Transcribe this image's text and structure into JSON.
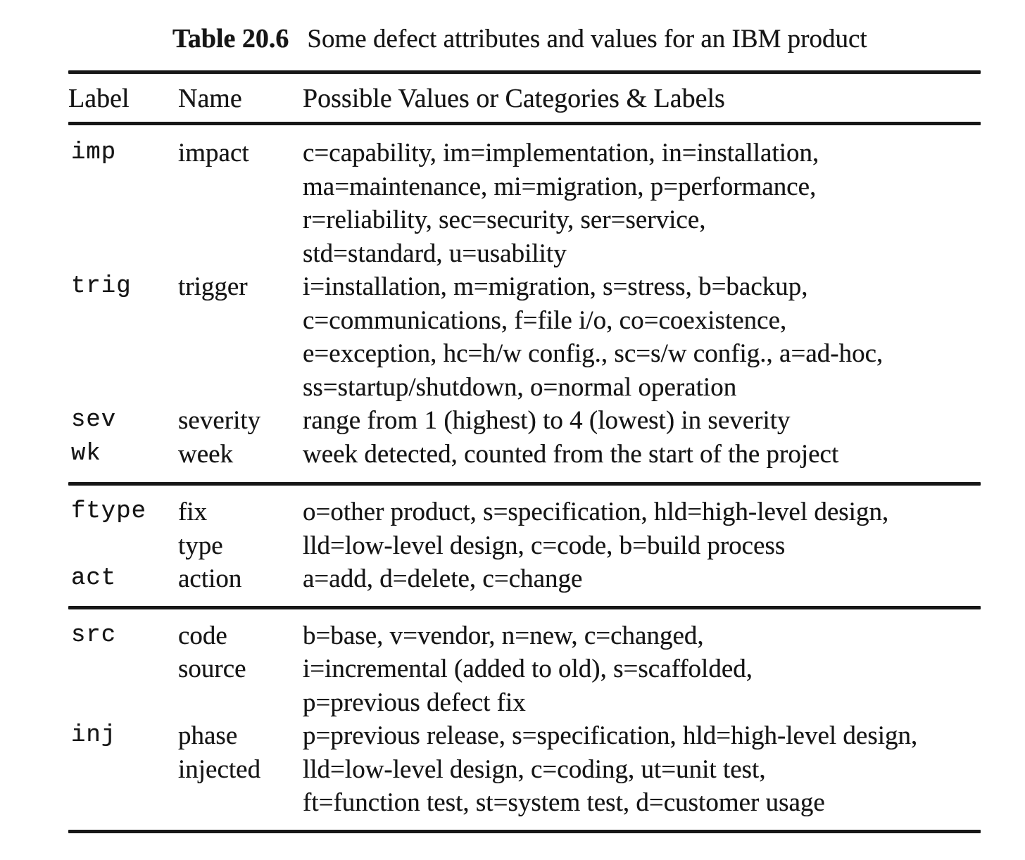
{
  "colors": {
    "ink": "#161616",
    "paper": "#ffffff"
  },
  "caption": {
    "label": "Table 20.6",
    "text": "Some defect attributes and values for an IBM product"
  },
  "table": {
    "columns": [
      "Label",
      "Name",
      "Possible Values or Categories & Labels"
    ],
    "groups": [
      {
        "rows": [
          {
            "label": "imp",
            "name": [
              "impact"
            ],
            "values": [
              "c=capability, im=implementation, in=installation,",
              "ma=maintenance, mi=migration, p=performance,",
              "r=reliability, sec=security, ser=service,",
              "std=standard, u=usability"
            ]
          },
          {
            "label": "trig",
            "name": [
              "trigger"
            ],
            "values": [
              "i=installation, m=migration, s=stress, b=backup,",
              "c=communications, f=file i/o, co=coexistence,",
              "e=exception, hc=h/w config., sc=s/w config., a=ad-hoc,",
              "ss=startup/shutdown, o=normal operation"
            ]
          },
          {
            "label": "sev",
            "name": [
              "severity"
            ],
            "values": [
              "range from 1 (highest) to 4 (lowest) in severity"
            ]
          },
          {
            "label": "wk",
            "name": [
              "week"
            ],
            "values": [
              "week detected, counted from the start of the project"
            ]
          }
        ]
      },
      {
        "rows": [
          {
            "label": "ftype",
            "name": [
              "fix",
              "type"
            ],
            "values": [
              "o=other product, s=specification, hld=high-level design,",
              "lld=low-level design, c=code, b=build process"
            ]
          },
          {
            "label": "act",
            "name": [
              "action"
            ],
            "values": [
              "a=add, d=delete, c=change"
            ]
          }
        ]
      },
      {
        "rows": [
          {
            "label": "src",
            "name": [
              "code",
              "source"
            ],
            "values": [
              "b=base, v=vendor, n=new, c=changed,",
              "i=incremental (added to old), s=scaffolded,",
              "p=previous defect fix"
            ]
          },
          {
            "label": "inj",
            "name": [
              "phase",
              "injected"
            ],
            "values": [
              "p=previous release, s=specification, hld=high-level design,",
              "lld=low-level design, c=coding, ut=unit test,",
              "ft=function test, st=system test, d=customer usage"
            ]
          }
        ]
      }
    ]
  }
}
